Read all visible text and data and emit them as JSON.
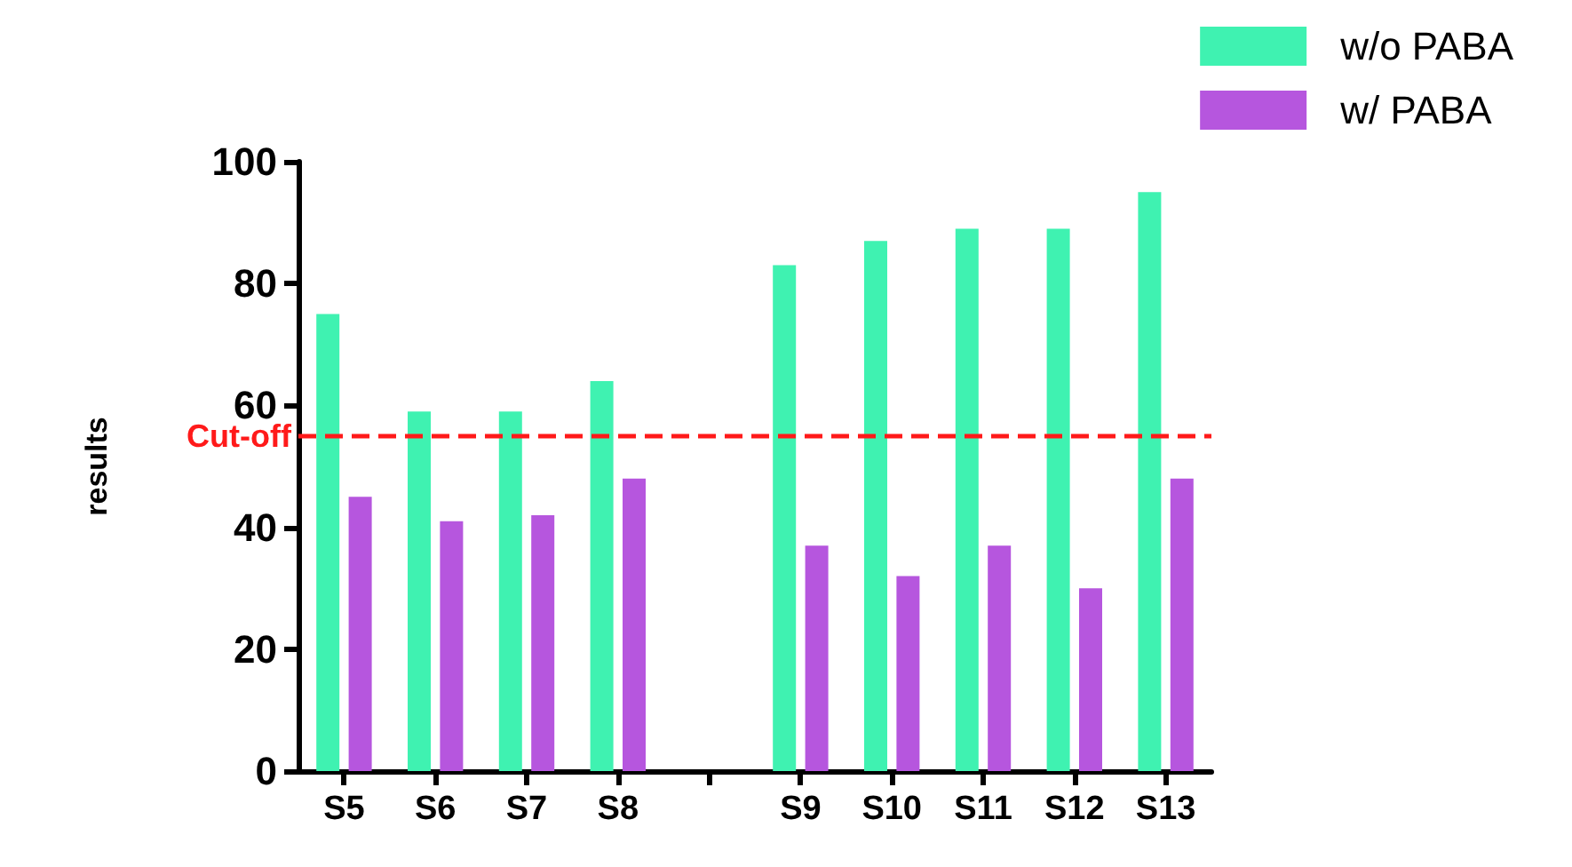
{
  "chart_data": {
    "type": "bar",
    "ylabel": "results",
    "categories": [
      "S5",
      "S6",
      "S7",
      "S8",
      null,
      "S9",
      "S10",
      "S11",
      "S12",
      "S13"
    ],
    "series": [
      {
        "name": "w/o PABA",
        "color": "#3ff2b1",
        "values": [
          75,
          59,
          59,
          64,
          null,
          83,
          87,
          89,
          89,
          95
        ]
      },
      {
        "name": "w/ PABA",
        "color": "#b656de",
        "values": [
          45,
          41,
          42,
          48,
          null,
          37,
          32,
          37,
          30,
          48
        ]
      }
    ],
    "ylim": [
      0,
      100
    ],
    "yticks": [
      0,
      20,
      40,
      60,
      80,
      100
    ],
    "grid": false,
    "legend": "top right",
    "ref_lines": [
      {
        "axis": "y",
        "value": 55,
        "label": "Cut-off",
        "color": "#ff1a1a",
        "line_style": "dashed"
      }
    ]
  }
}
